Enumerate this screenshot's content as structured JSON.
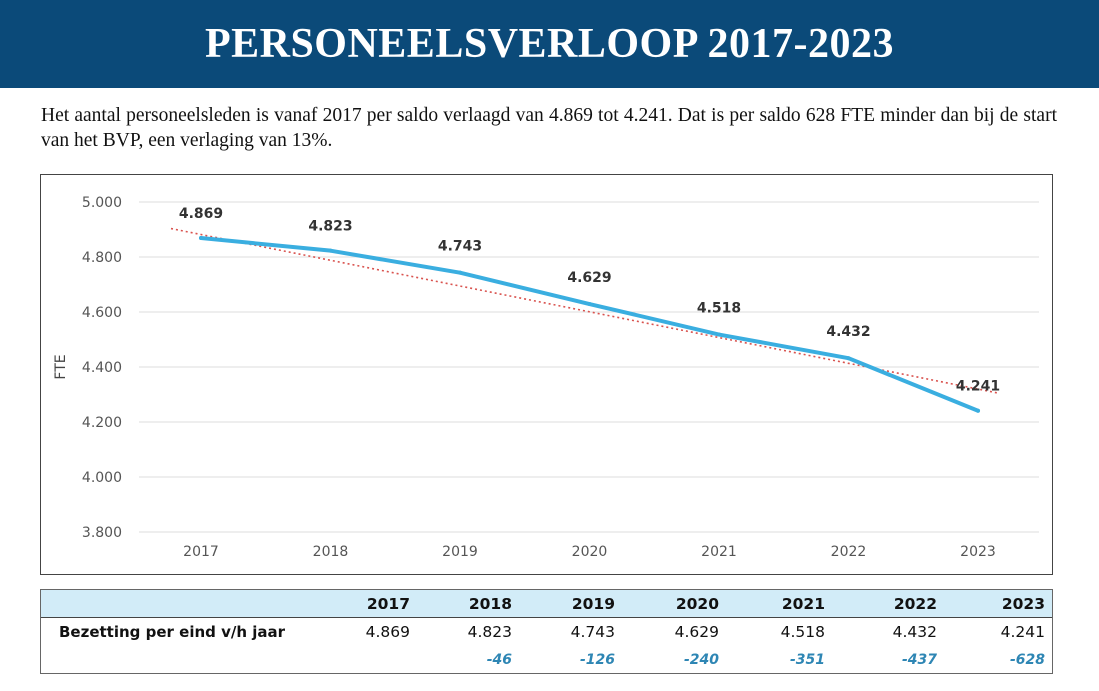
{
  "header": {
    "title": "PERSONEELSVERLOOP 2017-2023"
  },
  "intro": {
    "text": "Het aantal personeelsleden is vanaf 2017 per saldo verlaagd van 4.869 tot 4.241. Dat is per saldo 628 FTE minder dan bij de start van het BVP, een verlaging van 13%."
  },
  "chart_data": {
    "type": "line",
    "title": "",
    "xlabel": "",
    "ylabel": "FTE",
    "x": [
      "2017",
      "2018",
      "2019",
      "2020",
      "2021",
      "2022",
      "2023"
    ],
    "series": [
      {
        "name": "Bezetting per eind v/h jaar",
        "values": [
          4869,
          4823,
          4743,
          4629,
          4518,
          4432,
          4241
        ],
        "labels": [
          "4.869",
          "4.823",
          "4.743",
          "4.629",
          "4.518",
          "4.432",
          "4.241"
        ],
        "color": "#3aaee0"
      },
      {
        "name": "Trendlijn",
        "style": "dotted",
        "values": [
          4918,
          4820,
          4716,
          4613,
          4508,
          4402,
          4298
        ],
        "color": "#d9534f"
      }
    ],
    "ylim": [
      3800,
      5000
    ],
    "yticks": [
      5000,
      4800,
      4600,
      4400,
      4200,
      4000,
      3800
    ],
    "ytick_labels": [
      "5.000",
      "4.800",
      "4.600",
      "4.400",
      "4.200",
      "4.000",
      "3.800"
    ],
    "grid": true,
    "legend": "none"
  },
  "table": {
    "years": [
      "2017",
      "2018",
      "2019",
      "2020",
      "2021",
      "2022",
      "2023"
    ],
    "row_label": "Bezetting per eind v/h jaar",
    "values": [
      "4.869",
      "4.823",
      "4.743",
      "4.629",
      "4.518",
      "4.432",
      "4.241"
    ],
    "deltas": [
      "",
      "-46",
      "-126",
      "-240",
      "-351",
      "-437",
      "-628"
    ]
  },
  "colors": {
    "banner": "#0b4a79",
    "line": "#3aaee0",
    "trend": "#d9534f",
    "table_header": "#d2ecf8",
    "delta_text": "#2e86b4"
  }
}
